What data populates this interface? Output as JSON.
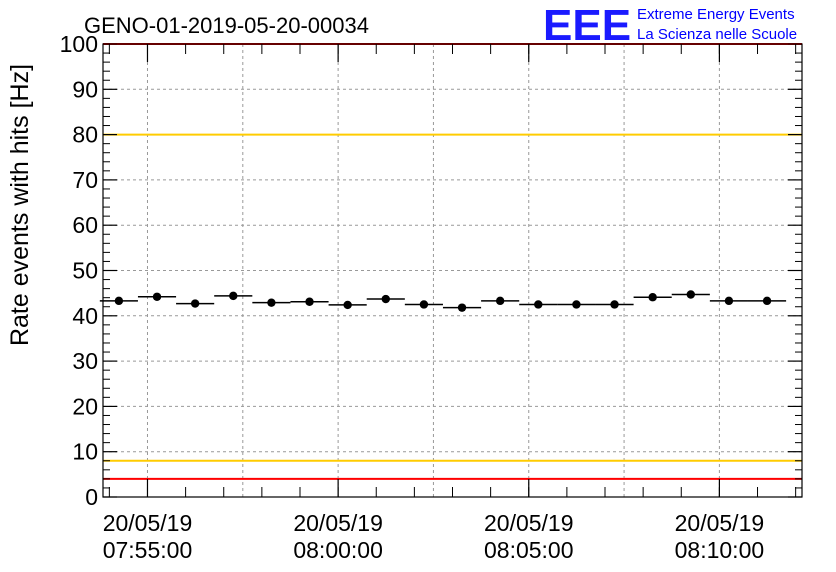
{
  "chart_data": {
    "type": "scatter",
    "title": "GENO-01-2019-05-20-00034",
    "ylabel": "Rate events with hits [Hz]",
    "xlabel": "",
    "ylim": [
      0,
      100
    ],
    "yticks": [
      0,
      10,
      20,
      30,
      40,
      50,
      60,
      70,
      80,
      90,
      100
    ],
    "xlim": [
      "2019-05-20 07:53:50",
      "2019-05-20 08:12:10"
    ],
    "xticks": [
      {
        "date": "20/05/19",
        "time": "07:55:00"
      },
      {
        "date": "20/05/19",
        "time": "08:00:00"
      },
      {
        "date": "20/05/19",
        "time": "08:05:00"
      },
      {
        "date": "20/05/19",
        "time": "08:10:00"
      }
    ],
    "grid": true,
    "bin_width_seconds": 60,
    "x": [
      "07:54:15",
      "07:55:15",
      "07:56:15",
      "07:57:15",
      "07:58:15",
      "07:59:15",
      "08:00:15",
      "08:01:15",
      "08:02:15",
      "08:03:15",
      "08:04:15",
      "08:05:15",
      "08:06:15",
      "08:07:15",
      "08:08:15",
      "08:09:15",
      "08:10:15",
      "08:11:15"
    ],
    "values": [
      43.3,
      44.2,
      42.7,
      44.4,
      42.9,
      43.1,
      42.4,
      43.7,
      42.5,
      41.8,
      43.3,
      42.5,
      42.5,
      42.5,
      44.1,
      44.7,
      43.3,
      43.3
    ],
    "reference_lines": [
      {
        "value": 100,
        "color": "#ff0000"
      },
      {
        "value": 80,
        "color": "#ffcc00"
      },
      {
        "value": 8,
        "color": "#ffcc00"
      },
      {
        "value": 4,
        "color": "#ff0000"
      }
    ]
  },
  "logo": {
    "mark": "EEE",
    "line1": "Extreme Energy Events",
    "line2": "La Scienza nelle Scuole",
    "color": "#0000ff"
  }
}
